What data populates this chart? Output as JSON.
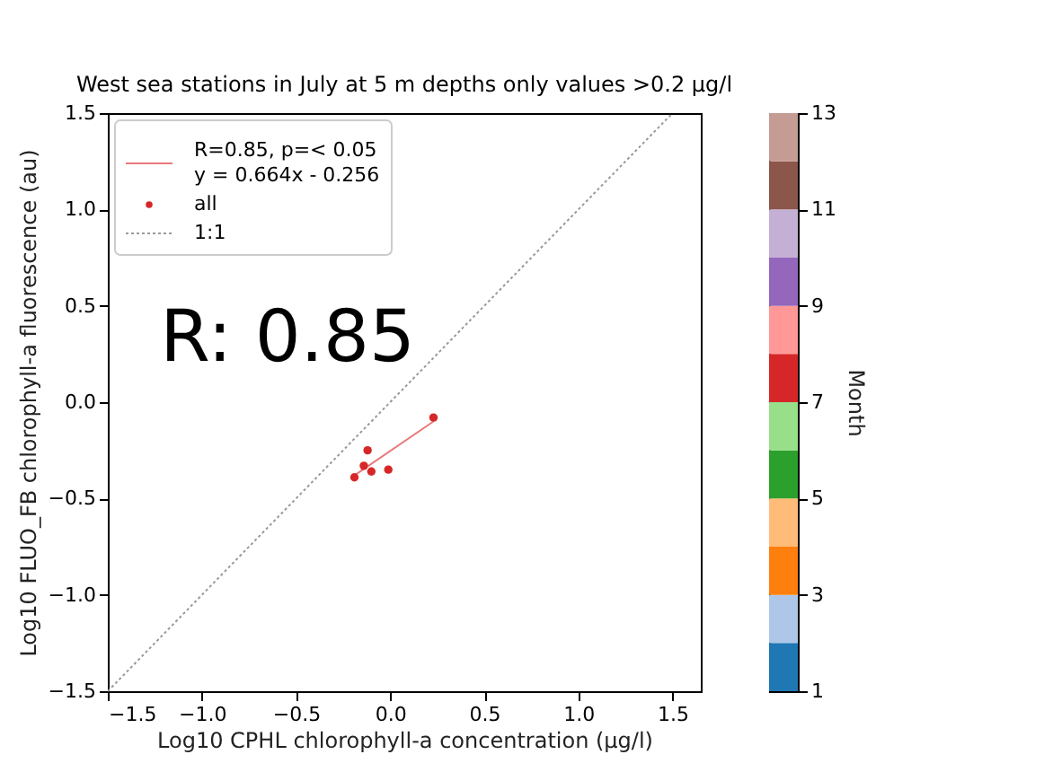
{
  "chart_data": {
    "type": "scatter",
    "title": "West sea stations in July at 5 m depths only values >0.2 µg/l",
    "xlabel": "Log10 CPHL chlorophyll-a concentration (µg/l)",
    "ylabel": "Log10 FLUO_FB chlorophyll-a fluorescence (au)",
    "clabel": "Month",
    "series": [
      {
        "name": "R=0.85, p=< 0.05\ny = 0.664x - 0.256",
        "type": "line",
        "color": "#e8797a",
        "line_style": "solid",
        "x": [
          -0.19,
          0.23
        ],
        "values": [
          -0.38,
          -0.1
        ]
      },
      {
        "name": "all",
        "type": "scatter",
        "color": "#d62728",
        "marker": "circle",
        "x": [
          0.23,
          -0.12,
          -0.14,
          -0.19,
          -0.1,
          -0.01
        ],
        "values": [
          -0.08,
          -0.25,
          -0.33,
          -0.39,
          -0.36,
          -0.35
        ],
        "cvalues": [
          7,
          7,
          7,
          7,
          7,
          7
        ]
      },
      {
        "name": "1:1",
        "type": "line",
        "color": "#999999",
        "line_style": "dotted",
        "x": [
          -1.5,
          1.5
        ],
        "values": [
          -1.5,
          1.5
        ]
      }
    ],
    "xlim": [
      -1.5,
      1.65
    ],
    "ylim": [
      -1.5,
      1.5
    ],
    "xticks": [
      {
        "value": -1.5,
        "label": "−1.5"
      },
      {
        "value": -1.0,
        "label": "−1.0"
      },
      {
        "value": -0.5,
        "label": "−0.5"
      },
      {
        "value": 0,
        "label": "0.0"
      },
      {
        "value": 0.5,
        "label": "0.5"
      },
      {
        "value": 1.0,
        "label": "1.0"
      },
      {
        "value": 1.5,
        "label": "1.5"
      }
    ],
    "yticks": [
      {
        "value": -1.5,
        "label": "−1.5"
      },
      {
        "value": -1.0,
        "label": "−1.0"
      },
      {
        "value": -0.5,
        "label": "−0.5"
      },
      {
        "value": 0,
        "label": "0.0"
      },
      {
        "value": 0.5,
        "label": "0.5"
      },
      {
        "value": 1.0,
        "label": "1.0"
      },
      {
        "value": 1.5,
        "label": "1.5"
      }
    ],
    "clim": [
      1,
      13
    ],
    "cticks": [
      1,
      3,
      5,
      7,
      9,
      11,
      13
    ],
    "annotations": [
      "R: 0.85"
    ],
    "legend": "top left",
    "grid": false
  }
}
